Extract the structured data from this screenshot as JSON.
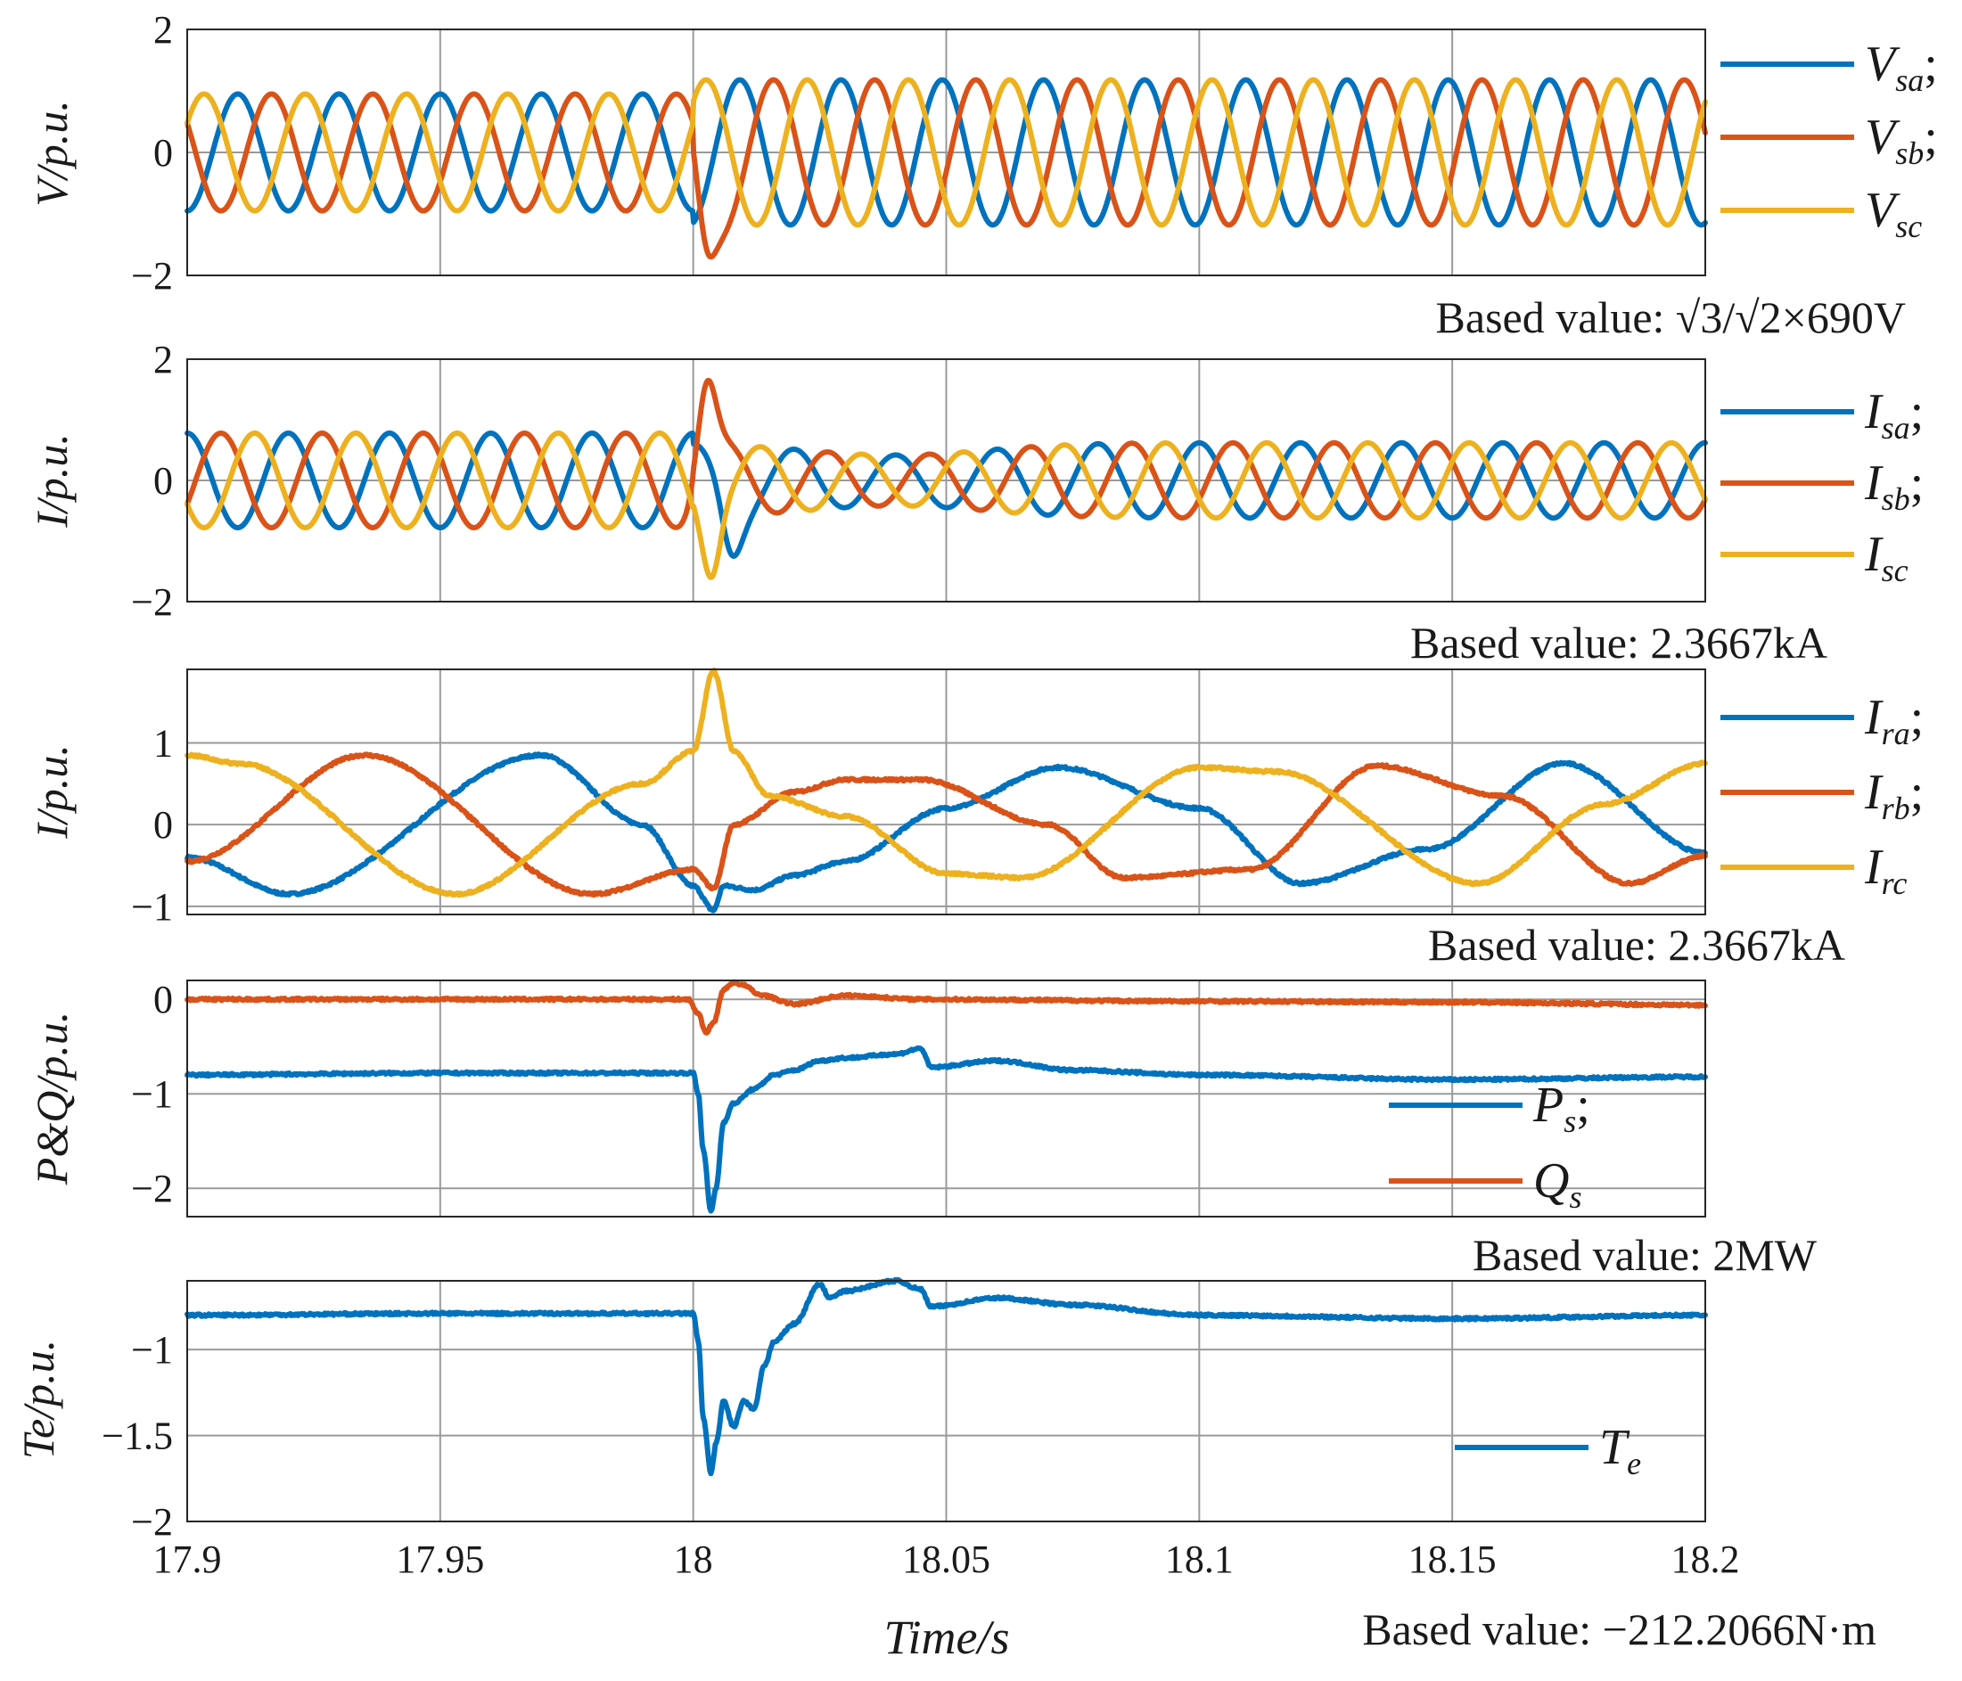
{
  "colors": {
    "blue": "#0072BD",
    "red": "#D95319",
    "yellow": "#EDB120"
  },
  "x_axis": {
    "label": "Time/s",
    "range": [
      17.9,
      18.2
    ],
    "ticks": [
      17.9,
      17.95,
      18,
      18.05,
      18.1,
      18.15,
      18.2
    ],
    "tick_labels": [
      "17.9",
      "17.95",
      "18",
      "18.05",
      "18.1",
      "18.15",
      "18.2"
    ]
  },
  "chart_data": [
    {
      "type": "line",
      "id": "stator-voltage",
      "ylabel": "V/p.u.",
      "ylim": [
        -2,
        2
      ],
      "yticks": [
        -2,
        0,
        2
      ],
      "ytick_labels": [
        "−2",
        "0",
        "2"
      ],
      "note": "Based value: √3/√2×690V",
      "grid": true,
      "legend_position": "outside-right",
      "signal": {
        "kind": "three-phase",
        "freq_hz": 50,
        "fault_time": 18.0,
        "amp_before": 0.95,
        "amp_after": 1.18,
        "settled_amp": 1.12,
        "dip": -1.7,
        "dip_time": 18.0035
      },
      "series": [
        {
          "name": "V",
          "sub": "sa",
          "suffix": ";",
          "color": "blue",
          "phase_deg": 0
        },
        {
          "name": "V",
          "sub": "sb",
          "suffix": ";",
          "color": "red",
          "phase_deg": -120
        },
        {
          "name": "V",
          "sub": "sc",
          "suffix": "",
          "color": "yellow",
          "phase_deg": 120
        }
      ]
    },
    {
      "type": "line",
      "id": "stator-current",
      "ylabel": "I/p.u.",
      "ylim": [
        -2,
        2
      ],
      "yticks": [
        -2,
        0,
        2
      ],
      "ytick_labels": [
        "−2",
        "0",
        "2"
      ],
      "note": "Based value: 2.3667kA",
      "grid": true,
      "legend_position": "outside-right",
      "signal": {
        "kind": "three-phase",
        "freq_hz": 50,
        "fault_time": 18.0,
        "amp_before": 0.78,
        "amp_min": 0.42,
        "amp_after": 0.62,
        "peak_red": 1.65,
        "dip_yellow": -1.6,
        "dip_blue": -1.25
      },
      "series": [
        {
          "name": "I",
          "sub": "sa",
          "suffix": ";",
          "color": "blue",
          "phase_deg": 0
        },
        {
          "name": "I",
          "sub": "sb",
          "suffix": ";",
          "color": "red",
          "phase_deg": -120
        },
        {
          "name": "I",
          "sub": "sc",
          "suffix": "",
          "color": "yellow",
          "phase_deg": 120
        }
      ]
    },
    {
      "type": "line",
      "id": "rotor-current",
      "ylabel": "I/p.u.",
      "ylim": [
        -1.1,
        1.9
      ],
      "yticks": [
        -1,
        0,
        1
      ],
      "ytick_labels": [
        "−1",
        "0",
        "1"
      ],
      "note": "Based value: 2.3667kA",
      "grid": true,
      "legend_position": "outside-right",
      "series": [
        {
          "name": "I",
          "sub": "ra",
          "suffix": ";",
          "color": "blue",
          "x": [
            17.9,
            17.92,
            17.97,
            17.99,
            18.0,
            18.004,
            18.006,
            18.012,
            18.02,
            18.03,
            18.05,
            18.072,
            18.1,
            18.12,
            18.145,
            18.172,
            18.2
          ],
          "y": [
            -0.4,
            -0.85,
            0.85,
            0.0,
            -0.75,
            -1.05,
            -0.75,
            -0.8,
            -0.62,
            -0.45,
            0.2,
            0.7,
            0.2,
            -0.72,
            -0.3,
            0.75,
            -0.35
          ]
        },
        {
          "name": "I",
          "sub": "rb",
          "suffix": ";",
          "color": "red",
          "x": [
            17.9,
            17.935,
            17.98,
            18.0,
            18.004,
            18.008,
            18.02,
            18.03,
            18.045,
            18.07,
            18.085,
            18.11,
            18.135,
            18.16,
            18.185,
            18.2
          ],
          "y": [
            -0.45,
            0.85,
            -0.85,
            -0.55,
            -0.78,
            0.0,
            0.4,
            0.55,
            0.55,
            0.0,
            -0.65,
            -0.55,
            0.72,
            0.35,
            -0.72,
            -0.38
          ]
        },
        {
          "name": "I",
          "sub": "rc",
          "suffix": "",
          "color": "yellow",
          "x": [
            17.9,
            17.91,
            17.953,
            17.99,
            18.0,
            18.004,
            18.008,
            18.015,
            18.03,
            18.05,
            18.065,
            18.1,
            18.115,
            18.155,
            18.18,
            18.2
          ],
          "y": [
            0.85,
            0.75,
            -0.85,
            0.5,
            0.9,
            1.88,
            0.9,
            0.35,
            0.1,
            -0.6,
            -0.65,
            0.7,
            0.65,
            -0.72,
            0.25,
            0.75
          ]
        }
      ]
    },
    {
      "type": "line",
      "id": "stator-power",
      "ylabel": "P&Q/p.u.",
      "ylim": [
        -2.3,
        0.2
      ],
      "yticks": [
        -2,
        -1,
        0
      ],
      "ytick_labels": [
        "−2",
        "−1",
        "0"
      ],
      "note": "Based value: 2MW",
      "grid": true,
      "legend_position": "inside-bottom-right",
      "series": [
        {
          "name": "P",
          "sub": "s",
          "suffix": ";",
          "color": "blue",
          "x": [
            17.9,
            17.95,
            18.0,
            18.001,
            18.002,
            18.0035,
            18.0045,
            18.006,
            18.008,
            18.012,
            18.016,
            18.02,
            18.025,
            18.03,
            18.04,
            18.045,
            18.047,
            18.06,
            18.075,
            18.1,
            18.15,
            18.2
          ],
          "y": [
            -0.8,
            -0.78,
            -0.78,
            -1.0,
            -1.6,
            -2.25,
            -2.0,
            -1.3,
            -1.1,
            -0.95,
            -0.8,
            -0.75,
            -0.65,
            -0.62,
            -0.58,
            -0.52,
            -0.72,
            -0.65,
            -0.75,
            -0.8,
            -0.85,
            -0.82
          ]
        },
        {
          "name": "Q",
          "sub": "s",
          "suffix": "",
          "color": "red",
          "x": [
            17.9,
            17.95,
            17.999,
            18.001,
            18.0025,
            18.004,
            18.006,
            18.008,
            18.01,
            18.013,
            18.02,
            18.03,
            18.045,
            18.1,
            18.15,
            18.2
          ],
          "y": [
            0.0,
            0.0,
            0.0,
            -0.15,
            -0.35,
            -0.25,
            0.1,
            0.18,
            0.15,
            0.05,
            -0.05,
            0.04,
            0.0,
            -0.02,
            -0.03,
            -0.06
          ]
        }
      ]
    },
    {
      "type": "line",
      "id": "torque",
      "ylabel": "Te/p.u.",
      "ylim": [
        -2,
        -0.6
      ],
      "yticks": [
        -2,
        -1.5,
        -1
      ],
      "ytick_labels": [
        "−2",
        "−1.5",
        "−1"
      ],
      "note": "Based value: −212.2066N·m",
      "grid": true,
      "legend_position": "inside-bottom-right",
      "series": [
        {
          "name": "T",
          "sub": "e",
          "suffix": "",
          "color": "blue",
          "x": [
            17.9,
            17.95,
            18.0,
            18.001,
            18.002,
            18.0035,
            18.0045,
            18.006,
            18.008,
            18.01,
            18.012,
            18.014,
            18.016,
            18.02,
            18.025,
            18.027,
            18.03,
            18.04,
            18.045,
            18.047,
            18.06,
            18.075,
            18.1,
            18.15,
            18.2
          ],
          "y": [
            -0.8,
            -0.79,
            -0.79,
            -0.95,
            -1.4,
            -1.72,
            -1.55,
            -1.3,
            -1.45,
            -1.3,
            -1.35,
            -1.1,
            -0.95,
            -0.85,
            -0.62,
            -0.7,
            -0.66,
            -0.6,
            -0.65,
            -0.75,
            -0.7,
            -0.74,
            -0.8,
            -0.82,
            -0.8
          ]
        }
      ]
    }
  ]
}
